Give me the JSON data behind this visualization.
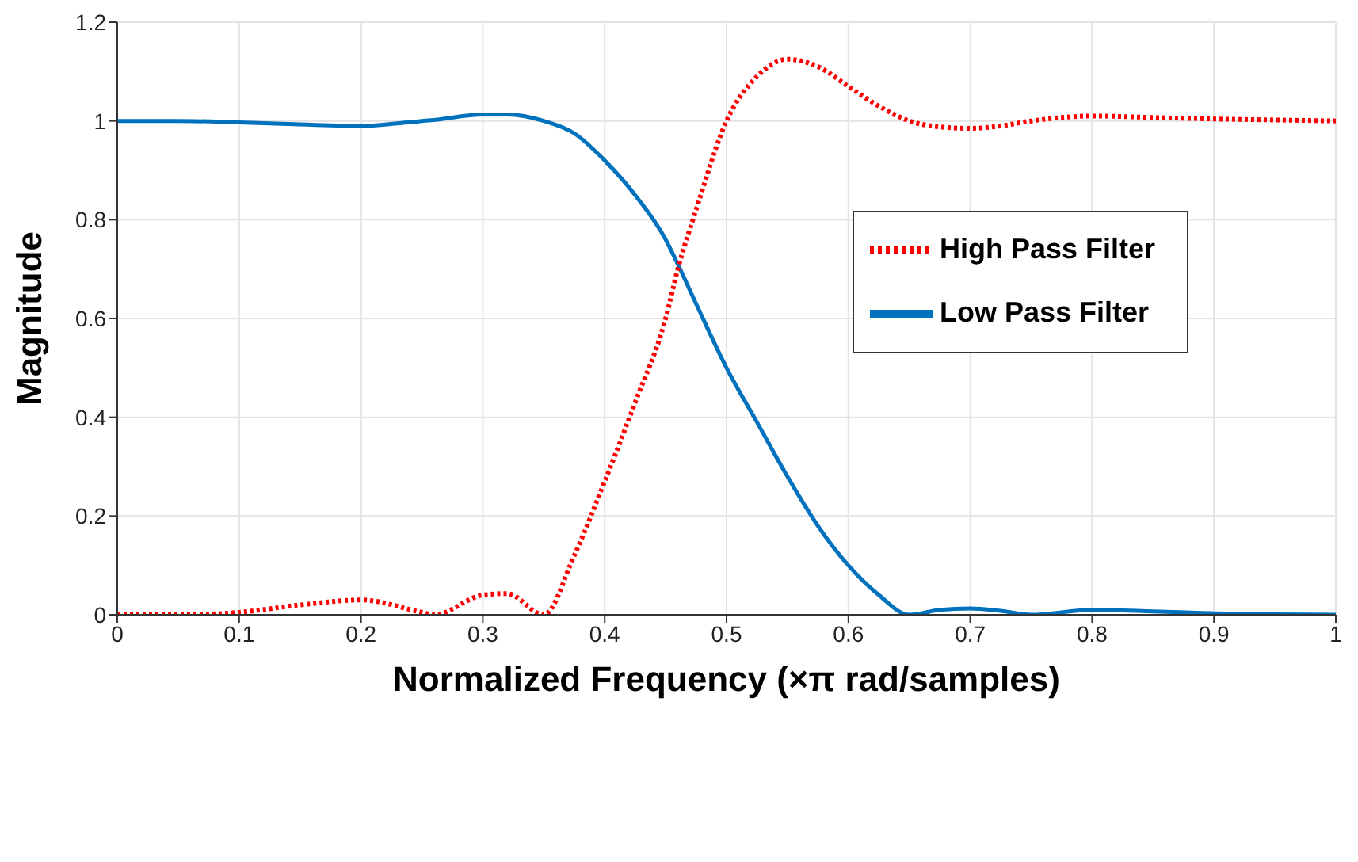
{
  "chart_data": {
    "type": "line",
    "xlabel": "Normalized Frequency (×π rad/samples)",
    "ylabel": "Magnitude",
    "xlim": [
      0,
      1
    ],
    "ylim": [
      0,
      1.2
    ],
    "xticks": [
      0,
      0.1,
      0.2,
      0.3,
      0.4,
      0.5,
      0.6,
      0.7,
      0.8,
      0.9,
      1
    ],
    "yticks": [
      0,
      0.2,
      0.4,
      0.6,
      0.8,
      1,
      1.2
    ],
    "grid": true,
    "legend": "right",
    "marker": "none",
    "x": [
      0,
      0.05,
      0.1,
      0.15,
      0.2,
      0.25,
      0.26,
      0.3,
      0.32,
      0.35,
      0.375,
      0.4,
      0.425,
      0.45,
      0.46,
      0.475,
      0.5,
      0.525,
      0.55,
      0.575,
      0.6,
      0.625,
      0.65,
      0.675,
      0.7,
      0.725,
      0.75,
      0.8,
      0.85,
      0.9,
      0.95,
      1
    ],
    "series": [
      {
        "name": "Low Pass Filter",
        "color": "#0072bd",
        "line_style": "solid",
        "values": [
          1,
          1,
          0.997,
          0.993,
          0.99,
          1,
          1.002,
          1.013,
          1.013,
          1,
          0.975,
          0.92,
          0.85,
          0.76,
          0.71,
          0.63,
          0.5,
          0.39,
          0.28,
          0.18,
          0.1,
          0.04,
          0,
          0.01,
          0.013,
          0.008,
          0,
          0.01,
          0.007,
          0.003,
          0.001,
          0
        ]
      },
      {
        "name": "High Pass Filter",
        "color": "#ff0000",
        "line_style": "dotted",
        "values": [
          0,
          0,
          0.005,
          0.02,
          0.03,
          0.005,
          0,
          0.04,
          0.043,
          0,
          0.12,
          0.27,
          0.43,
          0.6,
          0.7,
          0.82,
          1,
          1.09,
          1.125,
          1.11,
          1.07,
          1.03,
          1,
          0.988,
          0.985,
          0.99,
          1,
          1.01,
          1.007,
          1.004,
          1.002,
          1
        ]
      }
    ]
  }
}
